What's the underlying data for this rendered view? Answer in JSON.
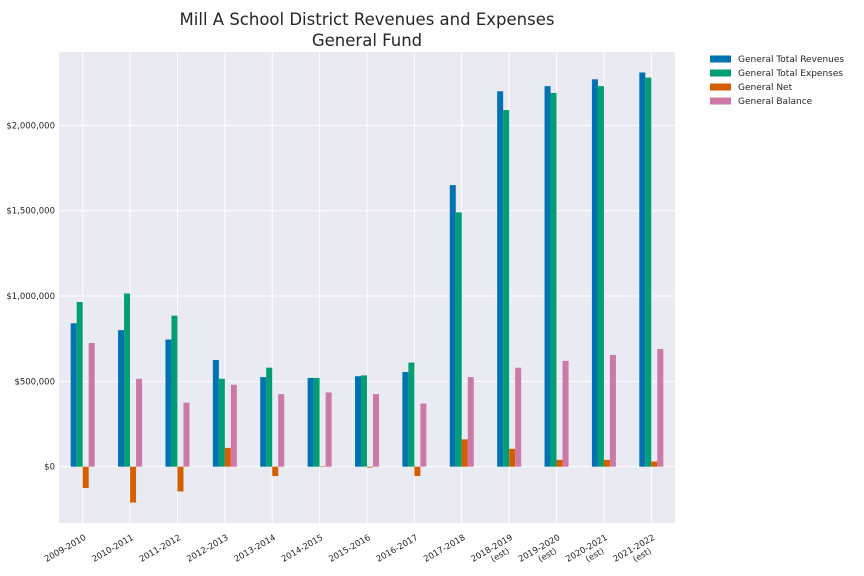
{
  "chart_data": {
    "type": "bar",
    "title": [
      "Mill A School District Revenues and Expenses",
      "General Fund"
    ],
    "categories": [
      [
        "2009-2010"
      ],
      [
        "2010-2011"
      ],
      [
        "2011-2012"
      ],
      [
        "2012-2013"
      ],
      [
        "2013-2014"
      ],
      [
        "2014-2015"
      ],
      [
        "2015-2016"
      ],
      [
        "2016-2017"
      ],
      [
        "2017-2018"
      ],
      [
        "2018-2019",
        "(est)"
      ],
      [
        "2019-2020",
        "(est)"
      ],
      [
        "2020-2021",
        "(est)"
      ],
      [
        "2021-2022",
        "(est)"
      ]
    ],
    "series": [
      {
        "name": "General Total Revenues",
        "color": "#0072b2",
        "values": [
          840000,
          800000,
          745000,
          625000,
          525000,
          520000,
          530000,
          555000,
          1650000,
          2200000,
          2230000,
          2270000,
          2310000
        ]
      },
      {
        "name": "General Total Expenses",
        "color": "#009e73",
        "values": [
          965000,
          1015000,
          885000,
          515000,
          580000,
          520000,
          535000,
          610000,
          1490000,
          2090000,
          2190000,
          2230000,
          2280000
        ]
      },
      {
        "name": "General Net",
        "color": "#d55e00",
        "values": [
          -125000,
          -210000,
          -145000,
          110000,
          -55000,
          3000,
          -5000,
          -55000,
          160000,
          105000,
          40000,
          40000,
          30000
        ]
      },
      {
        "name": "General Balance",
        "color": "#cc79a7",
        "values": [
          725000,
          515000,
          375000,
          480000,
          425000,
          435000,
          425000,
          370000,
          525000,
          580000,
          620000,
          655000,
          690000
        ]
      }
    ],
    "y_ticks": [
      0,
      500000,
      1000000,
      1500000,
      2000000
    ],
    "y_tick_labels": [
      "$0",
      "$500,000",
      "$1,000,000",
      "$1,500,000",
      "$2,000,000"
    ],
    "ylim": [
      -330000,
      2430000
    ],
    "grid": true,
    "legend_position": "outside-top-right"
  }
}
